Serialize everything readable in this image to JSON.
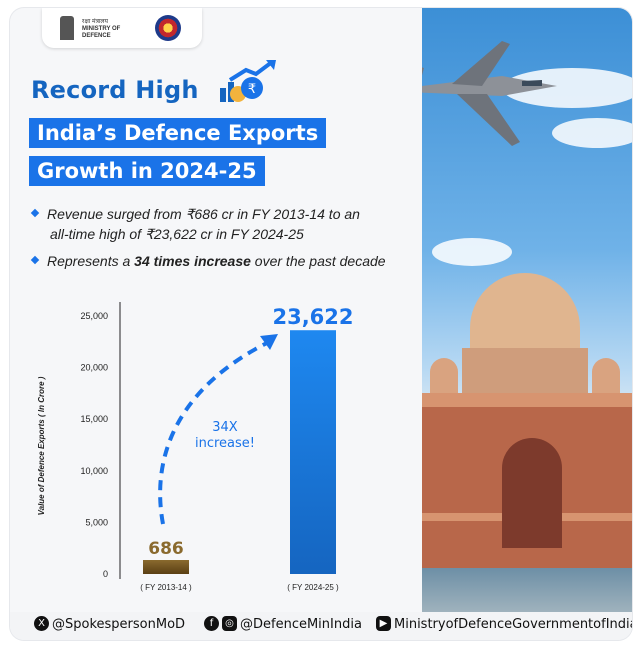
{
  "header": {
    "org_hindi": "रक्षा मंत्रालय",
    "org_line1": "MINISTRY OF",
    "org_line2": "DEFENCE"
  },
  "title": {
    "record": "Record High",
    "line1": "India’s Defence Exports",
    "line2": "Growth in 2024-25"
  },
  "bullets": {
    "b1_line1": "Revenue surged from ₹686 cr in FY 2013-14 to an",
    "b1_line2": "all-time high of ₹23,622 cr in FY 2024-25",
    "b2_pre": "Represents a ",
    "b2_bold": "34 times increase",
    "b2_post": " over the past decade"
  },
  "chart_data": {
    "type": "bar",
    "categories": [
      "( FY 2013-14 )",
      "( FY 2024-25 )"
    ],
    "values": [
      686,
      23622
    ],
    "value_labels": [
      "686",
      "23,622"
    ],
    "ylabel": "Value of Defence Exports ( In Crore )",
    "yticks": [
      "0",
      "5,000",
      "10,000",
      "15,000",
      "20,000",
      "25,000"
    ],
    "ylim": [
      0,
      25000
    ],
    "annotation_line1": "34X",
    "annotation_line2": "increase!",
    "colors": {
      "bar1": "#6b4c1e",
      "bar2": "#1a73e8",
      "arrow": "#1a73e8",
      "label2": "#1a73e8",
      "label1": "#8a6a2e"
    }
  },
  "footer": {
    "x_handle": "@SpokespersonMoD",
    "fb_insta_handle": "@DefenceMinIndia",
    "youtube_handle": "MinistryofDefenceGovernmentofIndia"
  }
}
